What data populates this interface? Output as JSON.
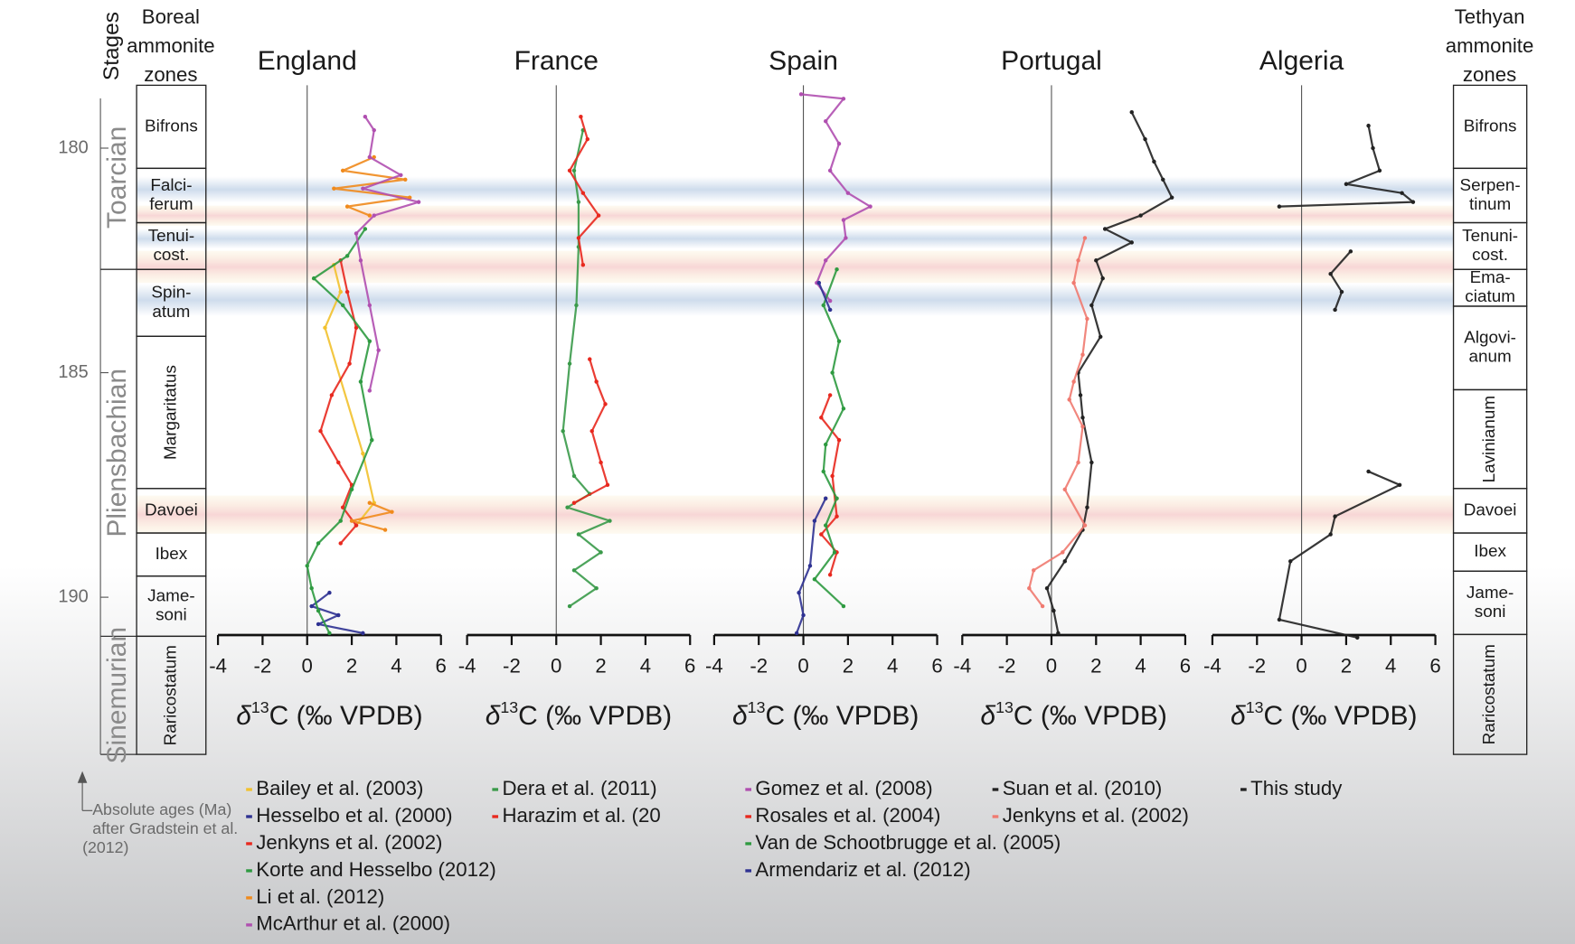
{
  "header": {
    "stages": "Stages",
    "boreal": [
      "Boreal",
      "ammonite",
      "zones"
    ],
    "tethyan": [
      "Tethyan",
      "ammonite",
      "zones"
    ]
  },
  "age_axis": {
    "ylim": [
      178.6,
      193.5
    ],
    "yticks": [
      180,
      185,
      190
    ]
  },
  "stages": [
    {
      "label": "Toarcian",
      "base": 182.7
    },
    {
      "label": "Pliensbachian",
      "base": 190.87
    },
    {
      "label": "Sinemurian",
      "base": 193.5
    }
  ],
  "boreal_zones": [
    {
      "label": [
        "Bifrons"
      ],
      "base": 180.45
    },
    {
      "label": [
        "Falci-",
        "ferum"
      ],
      "base": 181.66
    },
    {
      "label": [
        "Tenui-",
        "cost."
      ],
      "base": 182.7
    },
    {
      "label": [
        "Spin-",
        "atum"
      ],
      "base": 184.19
    },
    {
      "label": [
        "Margaritatus"
      ],
      "base": 187.58
    },
    {
      "label": [
        "Davoei"
      ],
      "base": 188.57
    },
    {
      "label": [
        "Ibex"
      ],
      "base": 189.53
    },
    {
      "label": [
        "Jame-",
        "soni"
      ],
      "base": 190.87
    },
    {
      "label": [
        "Raricostatum"
      ],
      "base": 193.5
    }
  ],
  "tethyan_zones": [
    {
      "label": [
        "Bifrons"
      ],
      "base": 180.45
    },
    {
      "label": [
        "Serpen-",
        "tinum"
      ],
      "base": 181.66
    },
    {
      "label": [
        "Tenuni-",
        "cost."
      ],
      "base": 182.7
    },
    {
      "label": [
        "Ema-",
        "ciatum"
      ],
      "base": 183.52
    },
    {
      "label": [
        "Algovi-",
        "anum"
      ],
      "base": 185.38
    },
    {
      "label": [
        "Lavinianum"
      ],
      "base": 187.58
    },
    {
      "label": [
        "Davoei"
      ],
      "base": 188.57
    },
    {
      "label": [
        "Ibex"
      ],
      "base": 189.42
    },
    {
      "label": [
        "Jame-",
        "soni"
      ],
      "base": 190.83
    },
    {
      "label": [
        "Raricostatum"
      ],
      "base": 193.5
    }
  ],
  "note": [
    "Absolute ages (Ma)",
    "after Gradstein et al.",
    "(2012)"
  ],
  "chart_data": [
    {
      "type": "line",
      "title": "England",
      "xlabel": [
        "δ",
        "13",
        "C (‰ VPDB)"
      ],
      "xlim": [
        -4,
        6
      ],
      "xticks": [
        -4,
        -2,
        0,
        2,
        4,
        6
      ],
      "series": [
        {
          "name": "Bailey et al. (2003)",
          "color": "#f2c12e",
          "ages": [
            182.6,
            183.2,
            184.0,
            186.8,
            187.9,
            188.4
          ],
          "values": [
            1.2,
            1.5,
            0.8,
            2.5,
            3.0,
            2.2
          ]
        },
        {
          "name": "Hesselbo et al. (2000)",
          "color": "#2e3192",
          "ages": [
            189.9,
            190.2,
            190.4,
            190.6,
            190.8
          ],
          "values": [
            1.0,
            0.2,
            1.4,
            0.5,
            2.5
          ]
        },
        {
          "name": "Jenkyns et al. (2002)",
          "color": "#e8281e",
          "ages": [
            182.5,
            183.2,
            184.0,
            184.8,
            185.5,
            186.3,
            187.0,
            187.5,
            188.0,
            188.4,
            188.8
          ],
          "values": [
            1.5,
            1.8,
            2.2,
            1.9,
            1.1,
            0.6,
            1.4,
            2.0,
            1.6,
            2.2,
            1.5
          ]
        },
        {
          "name": "Korte and Hesselbo (2012)",
          "color": "#2e9a40",
          "ages": [
            181.8,
            182.4,
            182.9,
            183.5,
            184.3,
            185.2,
            186.5,
            187.6,
            188.3,
            188.8,
            189.3,
            189.8,
            190.3,
            190.8
          ],
          "values": [
            2.6,
            1.8,
            0.3,
            1.6,
            2.8,
            2.4,
            2.9,
            2.0,
            1.5,
            0.5,
            0.0,
            0.2,
            0.5,
            1.0
          ]
        },
        {
          "name": "Li et al. (2012)",
          "color": "#f08a1c",
          "ages": [
            180.2,
            180.5,
            180.7,
            180.9,
            181.1,
            181.3,
            181.5,
            null,
            187.9,
            188.1,
            188.3,
            188.5
          ],
          "values": [
            3.0,
            1.6,
            4.4,
            1.2,
            4.6,
            1.8,
            2.8,
            null,
            2.8,
            3.8,
            2.0,
            3.5
          ]
        },
        {
          "name": "McArthur et al. (2000)",
          "color": "#b04fb0",
          "ages": [
            179.3,
            179.6,
            180.2,
            180.6,
            180.9,
            181.2,
            181.5,
            181.9,
            182.5,
            183.5,
            184.5,
            185.4
          ],
          "values": [
            2.6,
            3.0,
            2.8,
            4.2,
            2.5,
            5.0,
            3.0,
            2.2,
            2.4,
            2.8,
            3.2,
            2.8
          ]
        }
      ]
    },
    {
      "type": "line",
      "title": "France",
      "xlabel": [
        "δ",
        "13",
        "C (‰ VPDB)"
      ],
      "xlim": [
        -4,
        6
      ],
      "xticks": [
        -4,
        -2,
        0,
        2,
        4,
        6
      ],
      "series": [
        {
          "name": "Dera et al. (2011)",
          "color": "#3a9a4a",
          "ages": [
            179.6,
            180.5,
            181.2,
            182.2,
            183.5,
            184.8,
            186.3,
            187.3,
            187.7,
            188.0,
            188.3,
            188.6,
            189.0,
            189.4,
            189.8,
            190.2
          ],
          "values": [
            1.2,
            0.8,
            1.0,
            1.0,
            0.9,
            0.6,
            0.3,
            0.8,
            1.5,
            0.5,
            2.4,
            1.0,
            2.0,
            0.8,
            1.8,
            0.6
          ]
        },
        {
          "name": "Harazim et al. (20",
          "color": "#e8281e",
          "ages": [
            179.3,
            179.8,
            180.5,
            181.0,
            181.5,
            182.0,
            182.6,
            null,
            184.7,
            185.2,
            185.7,
            186.3,
            187.0,
            187.5,
            187.9
          ],
          "values": [
            1.1,
            1.4,
            0.6,
            1.2,
            1.9,
            1.0,
            1.2,
            null,
            1.5,
            1.8,
            2.2,
            1.6,
            2.0,
            2.3,
            0.8
          ]
        }
      ]
    },
    {
      "type": "line",
      "title": "Spain",
      "xlabel": [
        "δ",
        "13",
        "C (‰ VPDB)"
      ],
      "xlim": [
        -4,
        6
      ],
      "xticks": [
        -4,
        -2,
        0,
        2,
        4,
        6
      ],
      "series": [
        {
          "name": "Gomez et al. (2008)",
          "color": "#b04fb0",
          "ages": [
            178.8,
            178.9,
            179.4,
            179.9,
            180.5,
            181.0,
            181.3,
            181.6,
            182.0,
            182.5,
            183.0,
            183.4
          ],
          "values": [
            -0.1,
            1.8,
            1.0,
            1.6,
            1.2,
            2.0,
            3.0,
            1.8,
            1.9,
            1.0,
            0.6,
            1.2
          ]
        },
        {
          "name": "Rosales et al. (2004)",
          "color": "#e8281e",
          "ages": [
            185.5,
            186.0,
            186.5,
            187.3,
            188.2,
            188.6,
            189.0,
            189.5
          ],
          "values": [
            1.2,
            0.8,
            1.6,
            1.3,
            1.5,
            0.8,
            1.5,
            1.2
          ]
        },
        {
          "name": "Van de Schootbrugge et al. (2005)",
          "color": "#2e9a40",
          "ages": [
            182.7,
            183.5,
            184.3,
            185.0,
            185.8,
            186.6,
            187.2,
            187.8,
            188.4,
            189.0,
            189.6,
            190.2
          ],
          "values": [
            1.5,
            0.9,
            1.6,
            1.3,
            1.8,
            1.0,
            0.9,
            1.5,
            1.0,
            1.4,
            0.5,
            1.8
          ]
        },
        {
          "name": "Armendariz et al. (2012)",
          "color": "#2e3192",
          "ages": [
            183.0,
            183.6,
            null,
            187.8,
            188.3,
            189.3,
            189.9,
            190.4,
            190.8
          ],
          "values": [
            0.7,
            1.2,
            null,
            1.0,
            0.5,
            0.3,
            -0.2,
            0.0,
            -0.3
          ]
        }
      ]
    },
    {
      "type": "line",
      "title": "Portugal",
      "xlabel": [
        "δ",
        "13",
        "C (‰ VPDB)"
      ],
      "xlim": [
        -4,
        6
      ],
      "xticks": [
        -4,
        -2,
        0,
        2,
        4,
        6
      ],
      "series": [
        {
          "name": "Suan et al. (2010)",
          "color": "#222222",
          "ages": [
            179.2,
            179.8,
            180.3,
            180.7,
            181.1,
            181.5,
            181.8,
            182.1,
            182.5,
            182.9,
            183.5,
            184.2,
            185.0,
            185.5,
            186.0,
            187.0,
            188.0,
            188.5,
            189.2,
            189.8,
            190.3,
            190.8
          ],
          "values": [
            3.6,
            4.2,
            4.6,
            5.0,
            5.4,
            4.0,
            2.4,
            3.6,
            2.0,
            2.3,
            1.8,
            2.2,
            1.2,
            1.3,
            1.4,
            1.8,
            1.6,
            1.4,
            0.6,
            -0.2,
            0.1,
            0.3
          ]
        },
        {
          "name": "Jenkyns et al. (2002)",
          "color": "#f07a70",
          "ages": [
            182.0,
            182.5,
            183.0,
            183.8,
            184.6,
            185.2,
            185.6,
            186.2,
            187.0,
            187.6,
            188.4,
            189.0,
            189.4,
            189.8,
            190.2
          ],
          "values": [
            1.5,
            1.2,
            1.0,
            1.6,
            1.4,
            1.0,
            0.8,
            1.4,
            1.2,
            0.6,
            1.5,
            0.5,
            -0.8,
            -1.0,
            -0.4
          ]
        }
      ]
    },
    {
      "type": "line",
      "title": "Algeria",
      "xlabel": [
        "δ",
        "13",
        "C (‰ VPDB)"
      ],
      "xlim": [
        -4,
        6
      ],
      "xticks": [
        -4,
        -2,
        0,
        2,
        4,
        6
      ],
      "series": [
        {
          "name": "This study",
          "color": "#222222",
          "ages": [
            179.5,
            180.0,
            180.5,
            180.8,
            181.0,
            181.2,
            181.3,
            null,
            182.3,
            182.8,
            183.2,
            183.6,
            null,
            187.2,
            187.5,
            188.2,
            188.6,
            189.2,
            190.5,
            190.9
          ],
          "values": [
            3.0,
            3.2,
            3.5,
            2.0,
            4.5,
            5.0,
            -1.0,
            null,
            2.2,
            1.3,
            1.8,
            1.5,
            null,
            3.0,
            4.4,
            1.5,
            1.3,
            -0.5,
            -1.0,
            2.5
          ]
        }
      ]
    }
  ]
}
